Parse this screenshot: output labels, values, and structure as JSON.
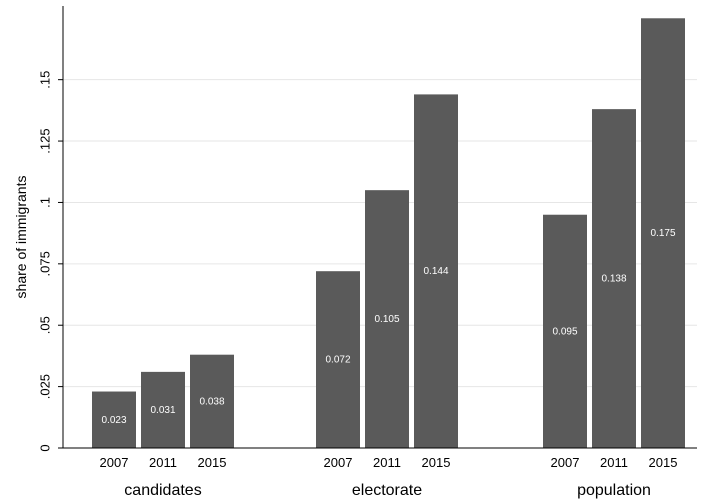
{
  "chart_data": {
    "type": "bar",
    "ylabel": "share of immigrants",
    "ylim": [
      0,
      0.18
    ],
    "y_ticks": [
      {
        "value": 0,
        "label": "0"
      },
      {
        "value": 0.025,
        "label": ".025"
      },
      {
        "value": 0.05,
        "label": ".05"
      },
      {
        "value": 0.075,
        "label": ".075"
      },
      {
        "value": 0.1,
        "label": ".1"
      },
      {
        "value": 0.125,
        "label": ".125"
      },
      {
        "value": 0.15,
        "label": ".15"
      }
    ],
    "grid": true,
    "groups": [
      {
        "name": "candidates",
        "bars": [
          {
            "year": "2007",
            "value": 0.023,
            "label": "0.023"
          },
          {
            "year": "2011",
            "value": 0.031,
            "label": "0.031"
          },
          {
            "year": "2015",
            "value": 0.038,
            "label": "0.038"
          }
        ]
      },
      {
        "name": "electorate",
        "bars": [
          {
            "year": "2007",
            "value": 0.072,
            "label": "0.072"
          },
          {
            "year": "2011",
            "value": 0.105,
            "label": "0.105"
          },
          {
            "year": "2015",
            "value": 0.144,
            "label": "0.144"
          }
        ]
      },
      {
        "name": "population",
        "bars": [
          {
            "year": "2007",
            "value": 0.095,
            "label": "0.095"
          },
          {
            "year": "2011",
            "value": 0.138,
            "label": "0.138"
          },
          {
            "year": "2015",
            "value": 0.175,
            "label": "0.175"
          }
        ]
      }
    ],
    "colors": {
      "bar": "#5a5a5a",
      "grid": "#e6e6e6",
      "axis": "#000000",
      "value_label": "#ffffff"
    }
  }
}
